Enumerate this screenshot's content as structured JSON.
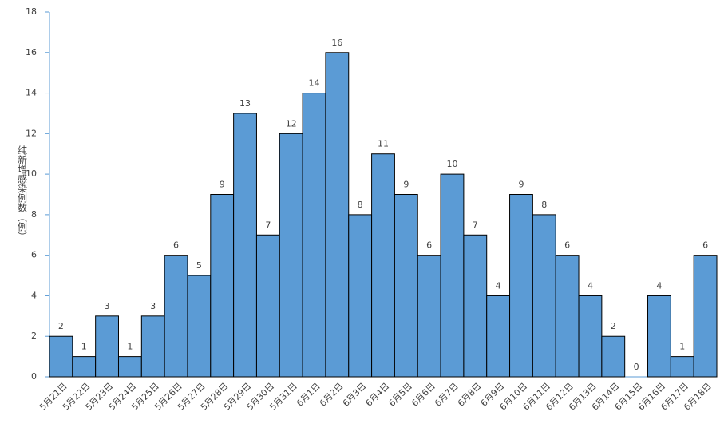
{
  "chart_data": {
    "type": "bar",
    "y_label": "纯新增感染例数（例）",
    "categories": [
      "5月21日",
      "5月22日",
      "5月23日",
      "5月24日",
      "5月25日",
      "5月26日",
      "5月27日",
      "5月28日",
      "5月29日",
      "5月30日",
      "5月31日",
      "6月1日",
      "6月2日",
      "6月3日",
      "6月4日",
      "6月5日",
      "6月6日",
      "6月7日",
      "6月8日",
      "6月9日",
      "6月10日",
      "6月11日",
      "6月12日",
      "6月13日",
      "6月14日",
      "6月15日",
      "6月16日",
      "6月17日",
      "6月18日"
    ],
    "values": [
      2,
      1,
      3,
      1,
      3,
      6,
      5,
      9,
      13,
      7,
      12,
      14,
      16,
      8,
      11,
      9,
      6,
      10,
      7,
      4,
      9,
      8,
      6,
      4,
      2,
      0,
      4,
      1,
      6
    ],
    "color": "#5b9bd5",
    "ylim": [
      0,
      18
    ],
    "yticks": [
      0,
      2,
      4,
      6,
      8,
      10,
      12,
      14,
      16,
      18
    ],
    "grid": false
  }
}
